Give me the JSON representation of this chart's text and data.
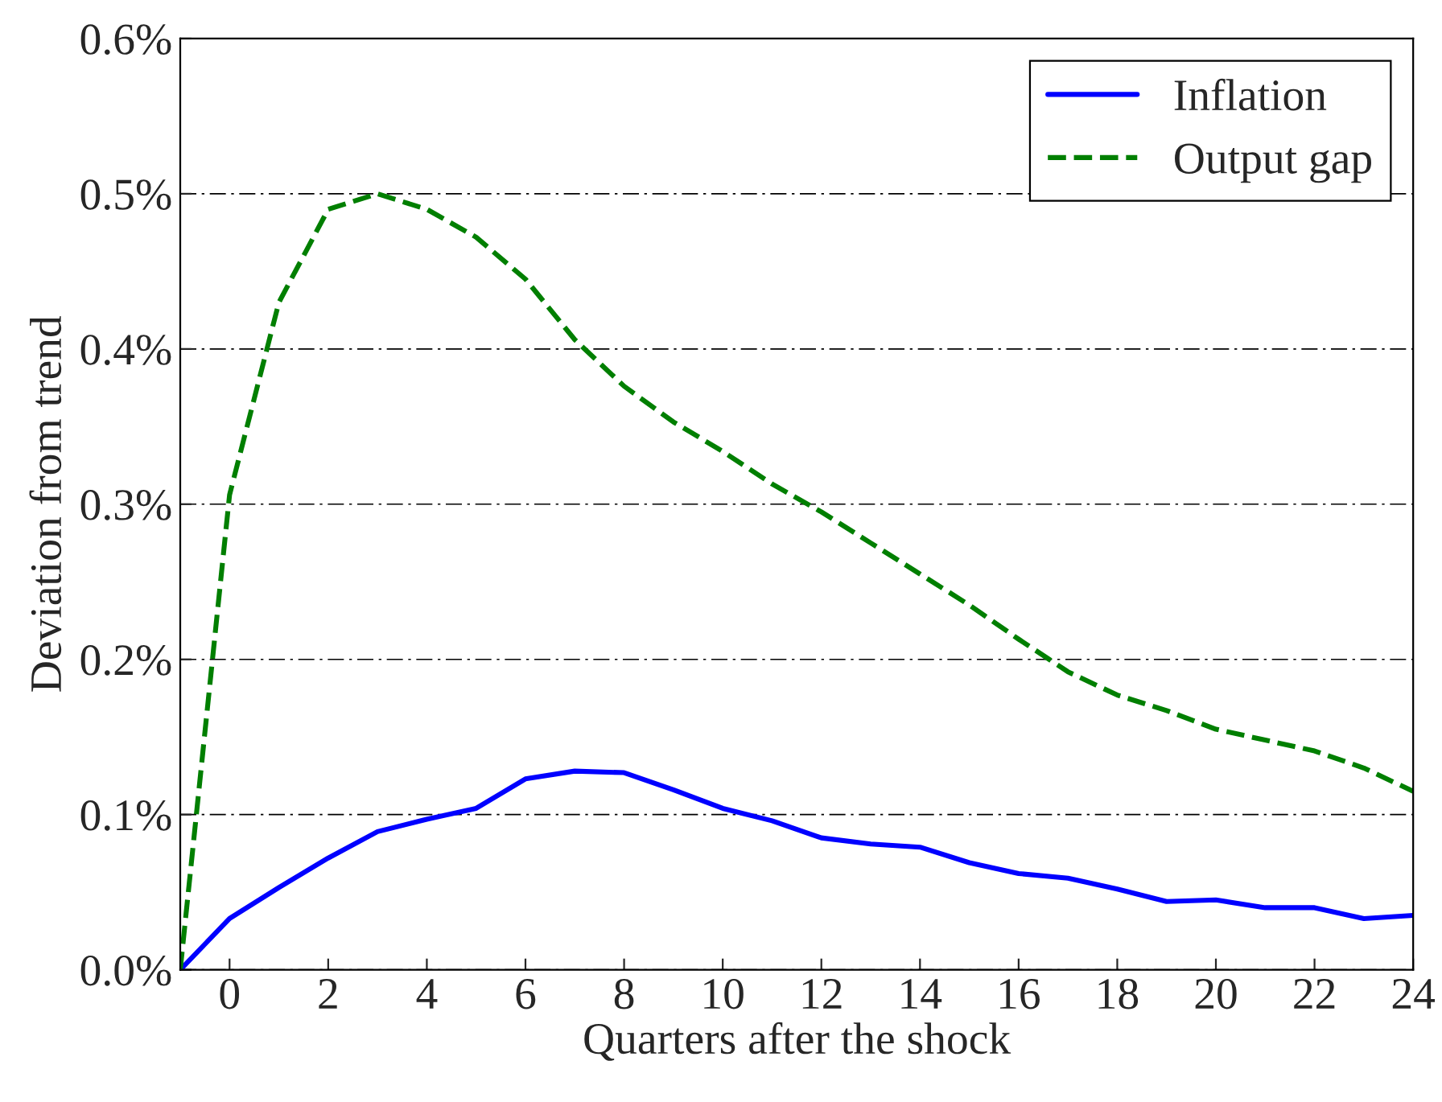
{
  "chart_data": {
    "type": "line",
    "xlabel": "Quarters after the shock",
    "ylabel": "Deviation from trend",
    "x": [
      -1,
      0,
      1,
      2,
      3,
      4,
      5,
      6,
      7,
      8,
      9,
      10,
      11,
      12,
      13,
      14,
      15,
      16,
      17,
      18,
      19,
      20,
      21,
      22,
      23,
      24
    ],
    "series": [
      {
        "name": "Inflation",
        "color": "#0000ff",
        "line_style": "solid",
        "values": [
          0,
          0.033,
          0.053,
          0.072,
          0.089,
          0.097,
          0.104,
          0.123,
          0.128,
          0.127,
          0.116,
          0.104,
          0.096,
          0.085,
          0.081,
          0.079,
          0.069,
          0.062,
          0.059,
          0.052,
          0.044,
          0.045,
          0.04,
          0.04,
          0.033,
          0.035
        ]
      },
      {
        "name": "Output gap",
        "color": "#007f00",
        "line_style": "dashed",
        "values": [
          0,
          0.306,
          0.43,
          0.49,
          0.5,
          0.49,
          0.472,
          0.445,
          0.406,
          0.376,
          0.353,
          0.334,
          0.313,
          0.295,
          0.275,
          0.255,
          0.235,
          0.213,
          0.192,
          0.177,
          0.167,
          0.155,
          0.148,
          0.141,
          0.13,
          0.115
        ]
      }
    ],
    "xlim": [
      -1,
      24
    ],
    "xticks": [
      0,
      2,
      4,
      6,
      8,
      10,
      12,
      14,
      16,
      18,
      20,
      22,
      24
    ],
    "ylim": [
      0,
      0.6
    ],
    "yticks": [
      {
        "value": 0,
        "label": "0.0%"
      },
      {
        "value": 0.1,
        "label": "0.1%"
      },
      {
        "value": 0.2,
        "label": "0.2%"
      },
      {
        "value": 0.3,
        "label": "0.3%"
      },
      {
        "value": 0.4,
        "label": "0.4%"
      },
      {
        "value": 0.5,
        "label": "0.5%"
      },
      {
        "value": 0.6,
        "label": "0.6%"
      }
    ],
    "grid": "y",
    "legend": "top right"
  }
}
